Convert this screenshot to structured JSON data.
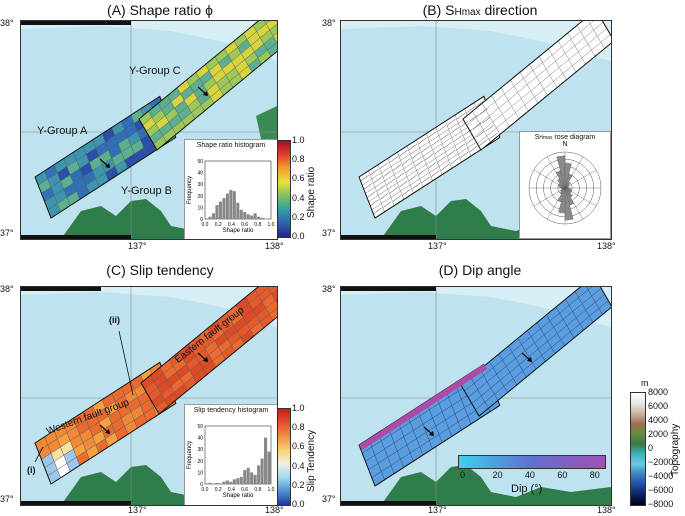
{
  "panels": {
    "a": {
      "title": "(A) Shape ratio ϕ",
      "lat_top": "38°",
      "lat_bottom": "37°",
      "lon_left": "137°",
      "lon_right": "138°",
      "labels": {
        "group_a": "Y-Group A",
        "group_b": "Y-Group B",
        "group_c": "Y-Group C"
      },
      "inset": {
        "title": "Shape ratio histogram",
        "ylabel": "Frequency",
        "xlabel": "Shape ratio",
        "yticks": [
          "0",
          "10",
          "20",
          "30",
          "40",
          "50"
        ],
        "xticks": [
          "0.0",
          "0.2",
          "0.4",
          "0.6",
          "0.8",
          "1.0"
        ]
      },
      "colorbar": {
        "label": "Shape ratio",
        "ticks": [
          "1.0",
          "0.8",
          "0.6",
          "0.4",
          "0.2",
          "0.0"
        ]
      }
    },
    "b": {
      "title_prefix": "(B) S",
      "title_sub": "Hmax",
      "title_suffix": " direction",
      "lat_top": "38°",
      "lat_bottom": "37°",
      "lon_left": "137°",
      "lon_right": "138°",
      "rose": {
        "title_prefix": "S",
        "title_sub": "Hmax",
        "title_suffix": " rose diagram",
        "north": "N"
      }
    },
    "c": {
      "title": "(C) Slip tendency",
      "lat_top": "38°",
      "lat_bottom": "37°",
      "lon_left": "137°",
      "lon_right": "138°",
      "labels": {
        "eastern": "Eastern fault group",
        "western": "Western fault group",
        "ii": "(ii)",
        "i": "(i)"
      },
      "inset": {
        "title": "Slip tendency histogram",
        "ylabel": "Frequency",
        "xlabel": "Shape ratio",
        "yticks": [
          "0",
          "10",
          "20",
          "30",
          "40",
          "50"
        ],
        "xticks": [
          "0.0",
          "0.2",
          "0.4",
          "0.6",
          "0.8",
          "1.0"
        ]
      },
      "colorbar": {
        "label": "Slip Tendency",
        "ticks": [
          "1.0",
          "0.8",
          "0.6",
          "0.4",
          "0.2",
          "0.0"
        ]
      }
    },
    "d": {
      "title": "(D) Dip angle",
      "lat_top": "38°",
      "lat_bottom": "37°",
      "lon_left": "137°",
      "lon_right": "138°",
      "dipbar": {
        "label": "Dip (°)",
        "ticks": [
          "0",
          "20",
          "40",
          "60",
          "80"
        ]
      }
    }
  },
  "topography": {
    "unit": "m",
    "label": "Topography",
    "ticks": [
      "8000",
      "6000",
      "4000",
      "2000",
      "0",
      "−2000",
      "−4000",
      "−6000",
      "−8000"
    ]
  },
  "histograms": {
    "shape_ratio": {
      "bins": [
        0.05,
        0.1,
        0.15,
        0.2,
        0.25,
        0.3,
        0.35,
        0.4,
        0.45,
        0.5,
        0.55,
        0.6,
        0.65,
        0.7,
        0.75,
        0.8,
        0.85,
        0.9,
        0.95
      ],
      "counts": [
        0,
        2,
        5,
        12,
        15,
        18,
        22,
        25,
        24,
        14,
        8,
        6,
        4,
        3,
        5,
        2,
        1,
        0,
        0
      ]
    },
    "slip_tendency": {
      "bins": [
        0.05,
        0.1,
        0.15,
        0.2,
        0.25,
        0.3,
        0.35,
        0.4,
        0.45,
        0.5,
        0.55,
        0.6,
        0.65,
        0.7,
        0.75,
        0.8,
        0.85,
        0.9,
        0.95
      ],
      "counts": [
        0,
        1,
        0,
        1,
        0,
        2,
        3,
        2,
        4,
        5,
        6,
        12,
        14,
        10,
        8,
        16,
        22,
        40,
        28
      ]
    }
  },
  "colors": {
    "sea": "#bfe3ee",
    "land": "#2f7d4a",
    "accent": "#4a90d9"
  }
}
